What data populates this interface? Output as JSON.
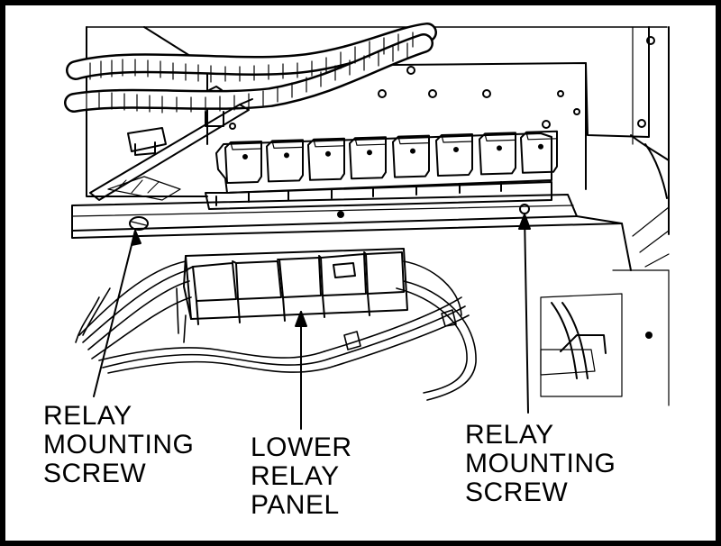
{
  "diagram": {
    "colors": {
      "ink": "#000000",
      "paper": "#ffffff"
    },
    "callouts": [
      {
        "id": "left",
        "lines": [
          "RELAY",
          "MOUNTING",
          "SCREW"
        ]
      },
      {
        "id": "mid",
        "lines": [
          "LOWER",
          "RELAY",
          "PANEL"
        ]
      },
      {
        "id": "right",
        "lines": [
          "RELAY",
          "MOUNTING",
          "SCREW"
        ]
      }
    ]
  }
}
